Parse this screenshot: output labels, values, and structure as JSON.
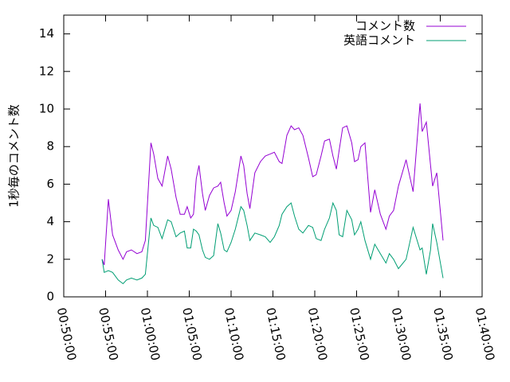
{
  "chart_data": {
    "type": "line",
    "ylabel": "1秒毎のコメント数",
    "legend": "top-right",
    "xlim": [
      3000,
      6000
    ],
    "ylim": [
      0,
      15
    ],
    "yticks": [
      0,
      2,
      4,
      6,
      8,
      10,
      12,
      14
    ],
    "xticks": [
      {
        "value": 3000,
        "label": "00:50:00"
      },
      {
        "value": 3300,
        "label": "00:55:00"
      },
      {
        "value": 3600,
        "label": "01:00:00"
      },
      {
        "value": 3900,
        "label": "01:05:00"
      },
      {
        "value": 4200,
        "label": "01:10:00"
      },
      {
        "value": 4500,
        "label": "01:15:00"
      },
      {
        "value": 4800,
        "label": "01:20:00"
      },
      {
        "value": 5100,
        "label": "01:25:00"
      },
      {
        "value": 5400,
        "label": "01:30:00"
      },
      {
        "value": 5700,
        "label": "01:35:00"
      },
      {
        "value": 6000,
        "label": "01:40:00"
      }
    ],
    "x": [
      3275,
      3290,
      3320,
      3350,
      3390,
      3425,
      3450,
      3485,
      3525,
      3560,
      3585,
      3625,
      3645,
      3675,
      3705,
      3745,
      3770,
      3805,
      3835,
      3865,
      3885,
      3910,
      3930,
      3950,
      3970,
      3995,
      4015,
      4045,
      4075,
      4105,
      4125,
      4150,
      4170,
      4200,
      4230,
      4270,
      4290,
      4315,
      4335,
      4370,
      4410,
      4445,
      4480,
      4510,
      4545,
      4565,
      4600,
      4630,
      4655,
      4685,
      4715,
      4755,
      4785,
      4810,
      4845,
      4870,
      4905,
      4930,
      4955,
      4975,
      5000,
      5030,
      5065,
      5085,
      5110,
      5130,
      5160,
      5200,
      5230,
      5270,
      5310,
      5335,
      5365,
      5400,
      5455,
      5505,
      5555,
      5570,
      5600,
      5630,
      5645,
      5675,
      5720
    ],
    "series": [
      {
        "name": "コメント数",
        "color": "#9400d3",
        "values": [
          2.0,
          1.7,
          5.2,
          3.3,
          2.5,
          2.0,
          2.4,
          2.5,
          2.3,
          2.4,
          3.0,
          8.2,
          7.6,
          6.3,
          5.9,
          7.5,
          6.8,
          5.3,
          4.4,
          4.4,
          4.8,
          4.2,
          4.4,
          6.3,
          7.0,
          5.5,
          4.6,
          5.4,
          5.8,
          5.9,
          6.1,
          5.0,
          4.3,
          4.6,
          5.6,
          7.5,
          7.0,
          5.5,
          4.7,
          6.6,
          7.2,
          7.5,
          7.6,
          7.7,
          7.2,
          7.1,
          8.6,
          9.1,
          8.9,
          9.0,
          8.6,
          7.4,
          6.4,
          6.5,
          7.5,
          8.3,
          8.4,
          7.5,
          6.8,
          7.8,
          9.0,
          9.1,
          8.2,
          7.2,
          7.3,
          8.0,
          8.2,
          4.5,
          5.7,
          4.4,
          3.6,
          4.3,
          4.6,
          5.9,
          7.3,
          5.6,
          10.3,
          8.8,
          9.3,
          7.0,
          5.9,
          6.6,
          3.0
        ]
      },
      {
        "name": "英語コメント",
        "color": "#009e73",
        "values": [
          2.0,
          1.3,
          1.4,
          1.3,
          0.9,
          0.7,
          0.9,
          1.0,
          0.9,
          1.0,
          1.2,
          4.2,
          3.8,
          3.7,
          3.1,
          4.1,
          4.0,
          3.2,
          3.4,
          3.5,
          2.6,
          2.6,
          3.6,
          3.5,
          3.3,
          2.5,
          2.1,
          2.0,
          2.2,
          3.9,
          3.4,
          2.5,
          2.4,
          2.9,
          3.6,
          4.8,
          4.6,
          3.8,
          3.0,
          3.4,
          3.3,
          3.2,
          2.9,
          3.2,
          3.8,
          4.4,
          4.8,
          5.0,
          4.3,
          3.6,
          3.4,
          3.8,
          3.7,
          3.1,
          3.0,
          3.6,
          4.2,
          5.0,
          4.6,
          3.3,
          3.2,
          4.6,
          4.1,
          3.3,
          3.6,
          4.0,
          3.0,
          2.0,
          2.8,
          2.3,
          1.8,
          2.3,
          2.0,
          1.5,
          2.0,
          3.7,
          2.5,
          2.6,
          1.2,
          2.5,
          3.9,
          2.9,
          1.0
        ]
      }
    ]
  }
}
